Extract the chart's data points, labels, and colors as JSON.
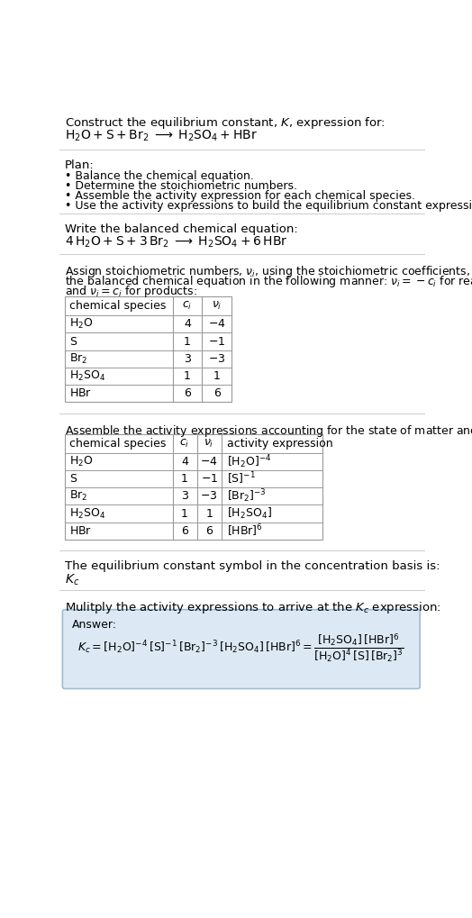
{
  "title_line1": "Construct the equilibrium constant, $K$, expression for:",
  "title_line2": "$\\mathrm{H_2O + S + Br_2 \\;\\longrightarrow\\; H_2SO_4 + HBr}$",
  "plan_header": "Plan:",
  "plan_items": [
    "• Balance the chemical equation.",
    "• Determine the stoichiometric numbers.",
    "• Assemble the activity expression for each chemical species.",
    "• Use the activity expressions to build the equilibrium constant expression."
  ],
  "balanced_header": "Write the balanced chemical equation:",
  "balanced_eq": "$\\mathrm{4\\,H_2O + S + 3\\,Br_2 \\;\\longrightarrow\\; H_2SO_4 + 6\\,HBr}$",
  "stoich_header_parts": [
    "Assign stoichiometric numbers, $\\nu_i$, using the stoichiometric coefficients, $c_i$, from",
    "the balanced chemical equation in the following manner: $\\nu_i = -c_i$ for reactants",
    "and $\\nu_i = c_i$ for products:"
  ],
  "table1_col_headers": [
    "chemical species",
    "$c_i$",
    "$\\nu_i$"
  ],
  "table1_rows": [
    [
      "$\\mathrm{H_2O}$",
      "4",
      "$-4$"
    ],
    [
      "$\\mathrm{S}$",
      "1",
      "$-1$"
    ],
    [
      "$\\mathrm{Br_2}$",
      "3",
      "$-3$"
    ],
    [
      "$\\mathrm{H_2SO_4}$",
      "1",
      "1"
    ],
    [
      "$\\mathrm{HBr}$",
      "6",
      "6"
    ]
  ],
  "activity_header": "Assemble the activity expressions accounting for the state of matter and $\\nu_i$:",
  "table2_col_headers": [
    "chemical species",
    "$c_i$",
    "$\\nu_i$",
    "activity expression"
  ],
  "table2_rows": [
    [
      "$\\mathrm{H_2O}$",
      "4",
      "$-4$",
      "$[\\mathrm{H_2O}]^{-4}$"
    ],
    [
      "$\\mathrm{S}$",
      "1",
      "$-1$",
      "$[\\mathrm{S}]^{-1}$"
    ],
    [
      "$\\mathrm{Br_2}$",
      "3",
      "$-3$",
      "$[\\mathrm{Br_2}]^{-3}$"
    ],
    [
      "$\\mathrm{H_2SO_4}$",
      "1",
      "1",
      "$[\\mathrm{H_2SO_4}]$"
    ],
    [
      "$\\mathrm{HBr}$",
      "6",
      "6",
      "$[\\mathrm{HBr}]^6$"
    ]
  ],
  "kc_header": "The equilibrium constant symbol in the concentration basis is:",
  "kc_symbol": "$K_c$",
  "multiply_header": "Mulitply the activity expressions to arrive at the $K_c$ expression:",
  "answer_label": "Answer:",
  "bg_color": "#ffffff",
  "answer_bg_color": "#dce9f5",
  "answer_border_color": "#9bbdd6",
  "table_border_color": "#999999",
  "sep_color": "#cccccc",
  "text_color": "#000000",
  "fs": 9.5,
  "sfs": 9.0
}
